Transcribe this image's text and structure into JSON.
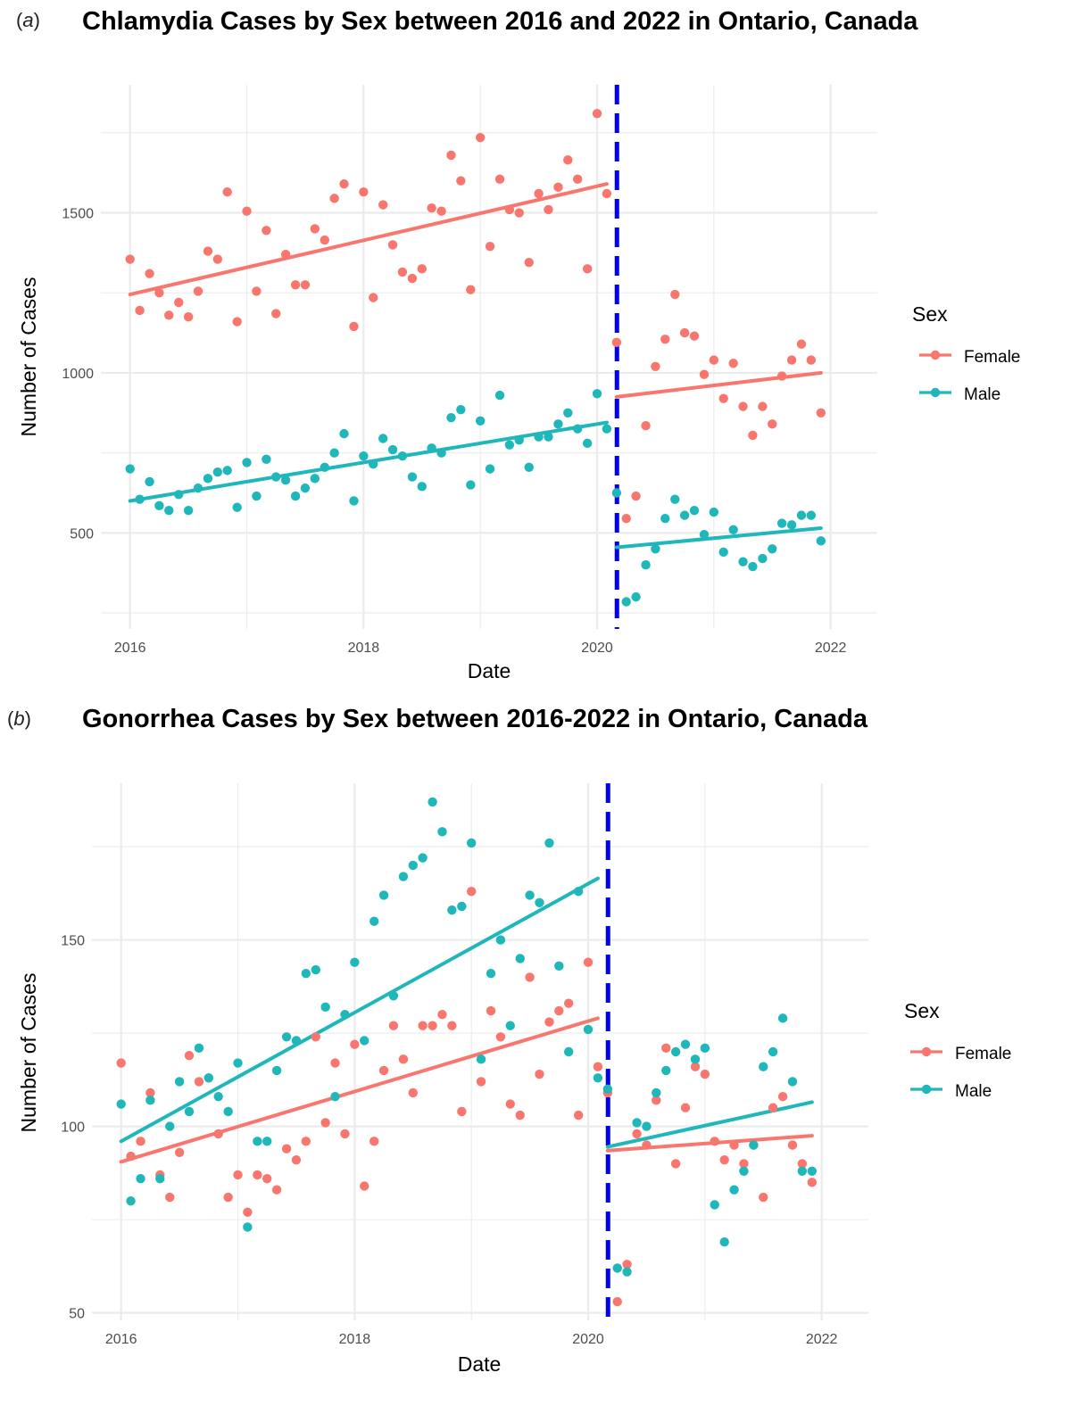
{
  "colors": {
    "female": "#F8766D",
    "male": "#1FB7B9",
    "intervention": "#0000EE",
    "grid": "#EBEBEB"
  },
  "chart_data": [
    {
      "type": "scatter",
      "panel": "(a)",
      "panel_letter": "a",
      "title": "Chlamydia Cases by Sex between 2016 and  2022 in Ontario, Canada",
      "xlabel": "Date",
      "ylabel": "Number of Cases",
      "xlim": [
        2015.75,
        2022.4
      ],
      "ylim": [
        200,
        1900
      ],
      "xticks": [
        2016,
        2018,
        2020,
        2022
      ],
      "yticks": [
        500,
        1000,
        1500
      ],
      "intervention_x": 2020.17,
      "legend": {
        "title": "Sex",
        "position": "right",
        "entries": [
          "Female",
          "Male"
        ]
      },
      "series": [
        {
          "name": "Female",
          "color": "#F8766D",
          "x": [
            2016.0,
            2016.083,
            2016.167,
            2016.25,
            2016.333,
            2016.417,
            2016.5,
            2016.583,
            2016.667,
            2016.75,
            2016.833,
            2016.917,
            2017.0,
            2017.083,
            2017.167,
            2017.25,
            2017.333,
            2017.417,
            2017.5,
            2017.583,
            2017.667,
            2017.75,
            2017.833,
            2017.917,
            2018.0,
            2018.083,
            2018.167,
            2018.25,
            2018.333,
            2018.417,
            2018.5,
            2018.583,
            2018.667,
            2018.75,
            2018.833,
            2018.917,
            2019.0,
            2019.083,
            2019.167,
            2019.25,
            2019.333,
            2019.417,
            2019.5,
            2019.583,
            2019.667,
            2019.75,
            2019.833,
            2019.917,
            2020.0,
            2020.083,
            2020.167,
            2020.25,
            2020.333,
            2020.417,
            2020.5,
            2020.583,
            2020.667,
            2020.75,
            2020.833,
            2020.917,
            2021.0,
            2021.083,
            2021.167,
            2021.25,
            2021.333,
            2021.417,
            2021.5,
            2021.583,
            2021.667,
            2021.75,
            2021.833,
            2021.917
          ],
          "values": [
            1355,
            1195,
            1310,
            1250,
            1180,
            1220,
            1175,
            1255,
            1380,
            1355,
            1565,
            1160,
            1505,
            1255,
            1445,
            1185,
            1370,
            1275,
            1275,
            1450,
            1415,
            1545,
            1590,
            1145,
            1565,
            1235,
            1525,
            1400,
            1315,
            1295,
            1325,
            1515,
            1505,
            1680,
            1600,
            1260,
            1735,
            1395,
            1605,
            1510,
            1500,
            1345,
            1560,
            1510,
            1580,
            1665,
            1605,
            1325,
            1810,
            1560,
            1095,
            545,
            615,
            835,
            1020,
            1105,
            1245,
            1125,
            1115,
            995,
            1040,
            920,
            1030,
            895,
            805,
            895,
            840,
            990,
            1040,
            1090,
            1040,
            875
          ],
          "trend_pre": {
            "x": [
              2016.0,
              2020.083
            ],
            "y": [
              1245,
              1590
            ]
          },
          "trend_post": {
            "x": [
              2020.167,
              2021.917
            ],
            "y": [
              925,
              1000
            ]
          }
        },
        {
          "name": "Male",
          "color": "#1FB7B9",
          "x": [
            2016.0,
            2016.083,
            2016.167,
            2016.25,
            2016.333,
            2016.417,
            2016.5,
            2016.583,
            2016.667,
            2016.75,
            2016.833,
            2016.917,
            2017.0,
            2017.083,
            2017.167,
            2017.25,
            2017.333,
            2017.417,
            2017.5,
            2017.583,
            2017.667,
            2017.75,
            2017.833,
            2017.917,
            2018.0,
            2018.083,
            2018.167,
            2018.25,
            2018.333,
            2018.417,
            2018.5,
            2018.583,
            2018.667,
            2018.75,
            2018.833,
            2018.917,
            2019.0,
            2019.083,
            2019.167,
            2019.25,
            2019.333,
            2019.417,
            2019.5,
            2019.583,
            2019.667,
            2019.75,
            2019.833,
            2019.917,
            2020.0,
            2020.083,
            2020.167,
            2020.25,
            2020.333,
            2020.417,
            2020.5,
            2020.583,
            2020.667,
            2020.75,
            2020.833,
            2020.917,
            2021.0,
            2021.083,
            2021.167,
            2021.25,
            2021.333,
            2021.417,
            2021.5,
            2021.583,
            2021.667,
            2021.75,
            2021.833,
            2021.917
          ],
          "values": [
            700,
            605,
            660,
            585,
            570,
            620,
            570,
            640,
            670,
            690,
            695,
            580,
            720,
            615,
            730,
            675,
            665,
            615,
            640,
            670,
            705,
            750,
            810,
            600,
            740,
            715,
            795,
            760,
            740,
            675,
            645,
            765,
            750,
            860,
            885,
            650,
            850,
            700,
            930,
            775,
            790,
            705,
            800,
            800,
            840,
            875,
            825,
            780,
            935,
            825,
            625,
            285,
            300,
            400,
            450,
            545,
            605,
            555,
            570,
            495,
            565,
            440,
            510,
            410,
            395,
            420,
            450,
            530,
            525,
            555,
            555,
            475
          ],
          "trend_pre": {
            "x": [
              2016.0,
              2020.083
            ],
            "y": [
              600,
              845
            ]
          },
          "trend_post": {
            "x": [
              2020.167,
              2021.917
            ],
            "y": [
              455,
              515
            ]
          }
        }
      ]
    },
    {
      "type": "scatter",
      "panel": "(b)",
      "panel_letter": "b",
      "title": "Gonorrhea Cases by Sex between 2016-2022 in Ontario, Canada",
      "xlabel": "Date",
      "ylabel": "Number of Cases",
      "xlim": [
        2015.75,
        2022.4
      ],
      "ylim": [
        48,
        192
      ],
      "xticks": [
        2016,
        2018,
        2020,
        2022
      ],
      "yticks": [
        50,
        100,
        150
      ],
      "intervention_x": 2020.17,
      "legend": {
        "title": "Sex",
        "position": "right",
        "entries": [
          "Female",
          "Male"
        ]
      },
      "series": [
        {
          "name": "Female",
          "color": "#F8766D",
          "x": [
            2016.0,
            2016.083,
            2016.167,
            2016.25,
            2016.333,
            2016.417,
            2016.5,
            2016.583,
            2016.667,
            2016.75,
            2016.833,
            2016.917,
            2017.0,
            2017.083,
            2017.167,
            2017.25,
            2017.333,
            2017.417,
            2017.5,
            2017.583,
            2017.667,
            2017.75,
            2017.833,
            2017.917,
            2018.0,
            2018.083,
            2018.167,
            2018.25,
            2018.333,
            2018.417,
            2018.5,
            2018.583,
            2018.667,
            2018.75,
            2018.833,
            2018.917,
            2019.0,
            2019.083,
            2019.167,
            2019.25,
            2019.333,
            2019.417,
            2019.5,
            2019.583,
            2019.667,
            2019.75,
            2019.833,
            2019.917,
            2020.0,
            2020.083,
            2020.167,
            2020.25,
            2020.333,
            2020.417,
            2020.5,
            2020.583,
            2020.667,
            2020.75,
            2020.833,
            2020.917,
            2021.0,
            2021.083,
            2021.167,
            2021.25,
            2021.333,
            2021.417,
            2021.5,
            2021.583,
            2021.667,
            2021.75,
            2021.833,
            2021.917
          ],
          "values": [
            117,
            92,
            96,
            109,
            87,
            81,
            93,
            119,
            112,
            113,
            98,
            81,
            87,
            77,
            87,
            86,
            83,
            94,
            91,
            96,
            124,
            101,
            117,
            98,
            122,
            84,
            96,
            115,
            127,
            118,
            109,
            127,
            127,
            130,
            127,
            104,
            163,
            112,
            131,
            124,
            106,
            103,
            140,
            114,
            128,
            131,
            133,
            103,
            144,
            116,
            109,
            53,
            63,
            98,
            95,
            107,
            121,
            90,
            105,
            116,
            114,
            96,
            91,
            95,
            90,
            95,
            81,
            105,
            108,
            95,
            90,
            85
          ],
          "trend_pre": {
            "x": [
              2016.0,
              2020.083
            ],
            "y": [
              90.5,
              129
            ]
          },
          "trend_post": {
            "x": [
              2020.167,
              2021.917
            ],
            "y": [
              93.5,
              97.5
            ]
          }
        },
        {
          "name": "Male",
          "color": "#1FB7B9",
          "x": [
            2016.0,
            2016.083,
            2016.167,
            2016.25,
            2016.333,
            2016.417,
            2016.5,
            2016.583,
            2016.667,
            2016.75,
            2016.833,
            2016.917,
            2017.0,
            2017.083,
            2017.167,
            2017.25,
            2017.333,
            2017.417,
            2017.5,
            2017.583,
            2017.667,
            2017.75,
            2017.833,
            2017.917,
            2018.0,
            2018.083,
            2018.167,
            2018.25,
            2018.333,
            2018.417,
            2018.5,
            2018.583,
            2018.667,
            2018.75,
            2018.833,
            2018.917,
            2019.0,
            2019.083,
            2019.167,
            2019.25,
            2019.333,
            2019.417,
            2019.5,
            2019.583,
            2019.667,
            2019.75,
            2019.833,
            2019.917,
            2020.0,
            2020.083,
            2020.167,
            2020.25,
            2020.333,
            2020.417,
            2020.5,
            2020.583,
            2020.667,
            2020.75,
            2020.833,
            2020.917,
            2021.0,
            2021.083,
            2021.167,
            2021.25,
            2021.333,
            2021.417,
            2021.5,
            2021.583,
            2021.667,
            2021.75,
            2021.833,
            2021.917
          ],
          "values": [
            106,
            80,
            86,
            107,
            86,
            100,
            112,
            104,
            121,
            113,
            108,
            104,
            117,
            73,
            96,
            96,
            115,
            124,
            123,
            141,
            142,
            132,
            108,
            130,
            144,
            123,
            155,
            162,
            135,
            167,
            170,
            172,
            187,
            179,
            158,
            159,
            176,
            118,
            141,
            150,
            127,
            145,
            162,
            160,
            176,
            143,
            120,
            163,
            126,
            113,
            110,
            62,
            61,
            101,
            100,
            109,
            115,
            120,
            122,
            118,
            121,
            79,
            69,
            83,
            88,
            95,
            116,
            120,
            129,
            112,
            88,
            88
          ],
          "trend_pre": {
            "x": [
              2016.0,
              2020.083
            ],
            "y": [
              96,
              166.5
            ]
          },
          "trend_post": {
            "x": [
              2020.167,
              2021.917
            ],
            "y": [
              94.5,
              106.5
            ]
          }
        }
      ]
    }
  ]
}
